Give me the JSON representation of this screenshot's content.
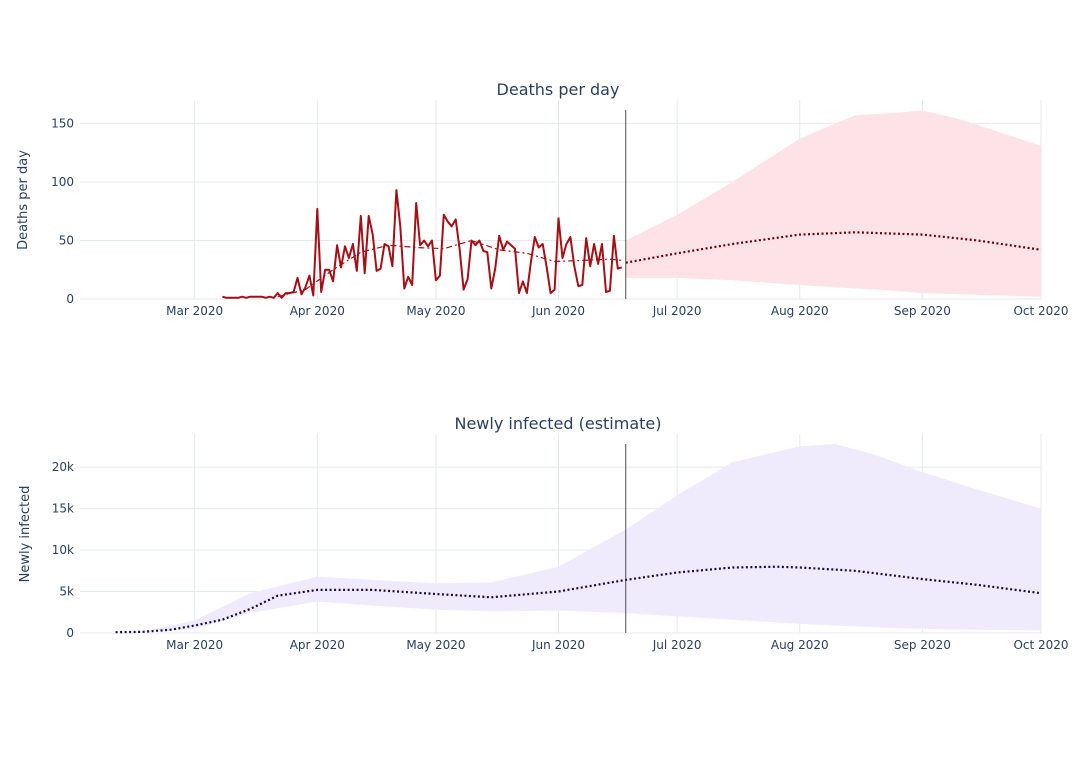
{
  "chart_data": [
    {
      "type": "line",
      "title": "Deaths per day",
      "xlabel": "",
      "ylabel": "Deaths per day",
      "x_ticks": [
        {
          "date": "2020-03-01",
          "label": "Mar 2020"
        },
        {
          "date": "2020-04-01",
          "label": "Apr 2020"
        },
        {
          "date": "2020-05-01",
          "label": "May 2020"
        },
        {
          "date": "2020-06-01",
          "label": "Jun 2020"
        },
        {
          "date": "2020-07-01",
          "label": "Jul 2020"
        },
        {
          "date": "2020-08-01",
          "label": "Aug 2020"
        },
        {
          "date": "2020-09-01",
          "label": "Sep 2020"
        },
        {
          "date": "2020-10-01",
          "label": "Oct 2020"
        }
      ],
      "xlim": [
        "2020-02-01",
        "2020-10-01"
      ],
      "ylim": [
        0,
        170
      ],
      "y_ticks": [
        {
          "value": 0,
          "label": "0"
        },
        {
          "value": 50,
          "label": "50"
        },
        {
          "value": 100,
          "label": "100"
        },
        {
          "value": 150,
          "label": "150"
        }
      ],
      "grid": true,
      "legend": "none",
      "marker_date": "2020-06-18",
      "colors": {
        "observed": "#a50f15",
        "rolling": "#a50f15",
        "projection": "#67000d",
        "band": "#fde3e7"
      },
      "series": [
        {
          "style": "observed",
          "x": [
            "2020-03-08",
            "2020-03-09",
            "2020-03-10",
            "2020-03-11",
            "2020-03-12",
            "2020-03-13",
            "2020-03-14",
            "2020-03-15",
            "2020-03-16",
            "2020-03-17",
            "2020-03-18",
            "2020-03-19",
            "2020-03-20",
            "2020-03-21",
            "2020-03-22",
            "2020-03-23",
            "2020-03-24",
            "2020-03-25",
            "2020-03-26",
            "2020-03-27",
            "2020-03-28",
            "2020-03-29",
            "2020-03-30",
            "2020-03-31",
            "2020-04-01",
            "2020-04-02",
            "2020-04-03",
            "2020-04-04",
            "2020-04-05",
            "2020-04-06",
            "2020-04-07",
            "2020-04-08",
            "2020-04-09",
            "2020-04-10",
            "2020-04-11",
            "2020-04-12",
            "2020-04-13",
            "2020-04-14",
            "2020-04-15",
            "2020-04-16",
            "2020-04-17",
            "2020-04-18",
            "2020-04-19",
            "2020-04-20",
            "2020-04-21",
            "2020-04-22",
            "2020-04-23",
            "2020-04-24",
            "2020-04-25",
            "2020-04-26",
            "2020-04-27",
            "2020-04-28",
            "2020-04-29",
            "2020-04-30",
            "2020-05-01",
            "2020-05-02",
            "2020-05-03",
            "2020-05-04",
            "2020-05-05",
            "2020-05-06",
            "2020-05-07",
            "2020-05-08",
            "2020-05-09",
            "2020-05-10",
            "2020-05-11",
            "2020-05-12",
            "2020-05-13",
            "2020-05-14",
            "2020-05-15",
            "2020-05-16",
            "2020-05-17",
            "2020-05-18",
            "2020-05-19",
            "2020-05-20",
            "2020-05-21",
            "2020-05-22",
            "2020-05-23",
            "2020-05-24",
            "2020-05-25",
            "2020-05-26",
            "2020-05-27",
            "2020-05-28",
            "2020-05-29",
            "2020-05-30",
            "2020-05-31",
            "2020-06-01",
            "2020-06-02",
            "2020-06-03",
            "2020-06-04",
            "2020-06-05",
            "2020-06-06",
            "2020-06-07",
            "2020-06-08",
            "2020-06-09",
            "2020-06-10",
            "2020-06-11",
            "2020-06-12",
            "2020-06-13",
            "2020-06-14",
            "2020-06-15",
            "2020-06-16",
            "2020-06-17"
          ],
          "values": [
            2,
            1,
            1,
            1,
            1,
            2,
            1,
            2,
            2,
            2,
            2,
            1,
            2,
            1,
            5,
            1,
            5,
            5,
            6,
            18,
            4,
            10,
            20,
            3,
            77,
            6,
            25,
            25,
            15,
            46,
            27,
            45,
            35,
            47,
            24,
            71,
            22,
            71,
            55,
            24,
            26,
            47,
            45,
            28,
            93,
            62,
            9,
            19,
            12,
            82,
            46,
            50,
            45,
            50,
            16,
            20,
            72,
            66,
            62,
            68,
            42,
            8,
            17,
            50,
            46,
            50,
            41,
            40,
            9,
            26,
            54,
            42,
            49,
            46,
            43,
            5,
            15,
            5,
            31,
            53,
            44,
            47,
            27,
            5,
            8,
            69,
            35,
            47,
            53,
            28,
            11,
            12,
            52,
            28,
            47,
            30,
            47,
            6,
            7,
            54,
            26,
            27
          ]
        },
        {
          "style": "rolling",
          "x": [
            "2020-03-22",
            "2020-03-29",
            "2020-04-05",
            "2020-04-12",
            "2020-04-19",
            "2020-04-26",
            "2020-05-03",
            "2020-05-10",
            "2020-05-17",
            "2020-05-24",
            "2020-05-31",
            "2020-06-07",
            "2020-06-14",
            "2020-06-17"
          ],
          "values": [
            2,
            8,
            25,
            40,
            46,
            44,
            43,
            50,
            42,
            39,
            32,
            33,
            34,
            33
          ]
        },
        {
          "style": "projection",
          "x": [
            "2020-06-18",
            "2020-07-01",
            "2020-07-15",
            "2020-08-01",
            "2020-08-15",
            "2020-09-01",
            "2020-09-15",
            "2020-10-01"
          ],
          "values": [
            31,
            39,
            47,
            55,
            57,
            55,
            50,
            42
          ]
        }
      ],
      "band": {
        "x": [
          "2020-06-18",
          "2020-07-01",
          "2020-07-15",
          "2020-08-01",
          "2020-08-15",
          "2020-08-25",
          "2020-09-01",
          "2020-09-10",
          "2020-09-20",
          "2020-10-01"
        ],
        "upper": [
          50,
          72,
          100,
          137,
          157,
          159,
          161,
          154,
          143,
          131
        ],
        "lower": [
          18,
          18,
          16,
          12,
          9,
          7,
          5,
          4,
          3,
          2
        ]
      }
    },
    {
      "type": "line",
      "title": "Newly infected (estimate)",
      "xlabel": "",
      "ylabel": "Newly infected",
      "x_ticks": [
        {
          "date": "2020-03-01",
          "label": "Mar 2020"
        },
        {
          "date": "2020-04-01",
          "label": "Apr 2020"
        },
        {
          "date": "2020-05-01",
          "label": "May 2020"
        },
        {
          "date": "2020-06-01",
          "label": "Jun 2020"
        },
        {
          "date": "2020-07-01",
          "label": "Jul 2020"
        },
        {
          "date": "2020-08-01",
          "label": "Aug 2020"
        },
        {
          "date": "2020-09-01",
          "label": "Sep 2020"
        },
        {
          "date": "2020-10-01",
          "label": "Oct 2020"
        }
      ],
      "xlim": [
        "2020-02-01",
        "2020-10-01"
      ],
      "ylim": [
        0,
        24000
      ],
      "y_ticks": [
        {
          "value": 0,
          "label": "0"
        },
        {
          "value": 5000,
          "label": "5k"
        },
        {
          "value": 10000,
          "label": "10k"
        },
        {
          "value": 15000,
          "label": "15k"
        },
        {
          "value": 20000,
          "label": "20k"
        }
      ],
      "grid": true,
      "legend": "none",
      "marker_date": "2020-06-18",
      "colors": {
        "projection": "#1b0a3a",
        "band": "#efebfd"
      },
      "series": [
        {
          "style": "projection",
          "x": [
            "2020-02-10",
            "2020-02-17",
            "2020-02-24",
            "2020-03-01",
            "2020-03-08",
            "2020-03-15",
            "2020-03-22",
            "2020-04-01",
            "2020-04-15",
            "2020-05-01",
            "2020-05-15",
            "2020-06-01",
            "2020-06-18",
            "2020-07-01",
            "2020-07-15",
            "2020-07-26",
            "2020-08-01",
            "2020-08-15",
            "2020-09-01",
            "2020-09-15",
            "2020-10-01"
          ],
          "values": [
            100,
            150,
            400,
            900,
            1600,
            2900,
            4500,
            5200,
            5200,
            4700,
            4300,
            5000,
            6400,
            7300,
            7900,
            8000,
            7900,
            7500,
            6500,
            5800,
            4800
          ]
        }
      ],
      "band": {
        "x": [
          "2020-02-17",
          "2020-03-01",
          "2020-03-15",
          "2020-04-01",
          "2020-04-15",
          "2020-05-01",
          "2020-05-15",
          "2020-06-01",
          "2020-06-18",
          "2020-07-01",
          "2020-07-15",
          "2020-08-01",
          "2020-08-10",
          "2020-08-20",
          "2020-09-01",
          "2020-09-15",
          "2020-10-01"
        ],
        "upper": [
          200,
          1500,
          4800,
          6800,
          6400,
          6000,
          6100,
          8000,
          12500,
          16600,
          20600,
          22500,
          22800,
          21500,
          19400,
          17300,
          15000
        ],
        "lower": [
          100,
          500,
          2400,
          3800,
          3300,
          2800,
          2600,
          2700,
          2400,
          2000,
          1600,
          1100,
          900,
          700,
          500,
          400,
          300
        ]
      }
    }
  ]
}
